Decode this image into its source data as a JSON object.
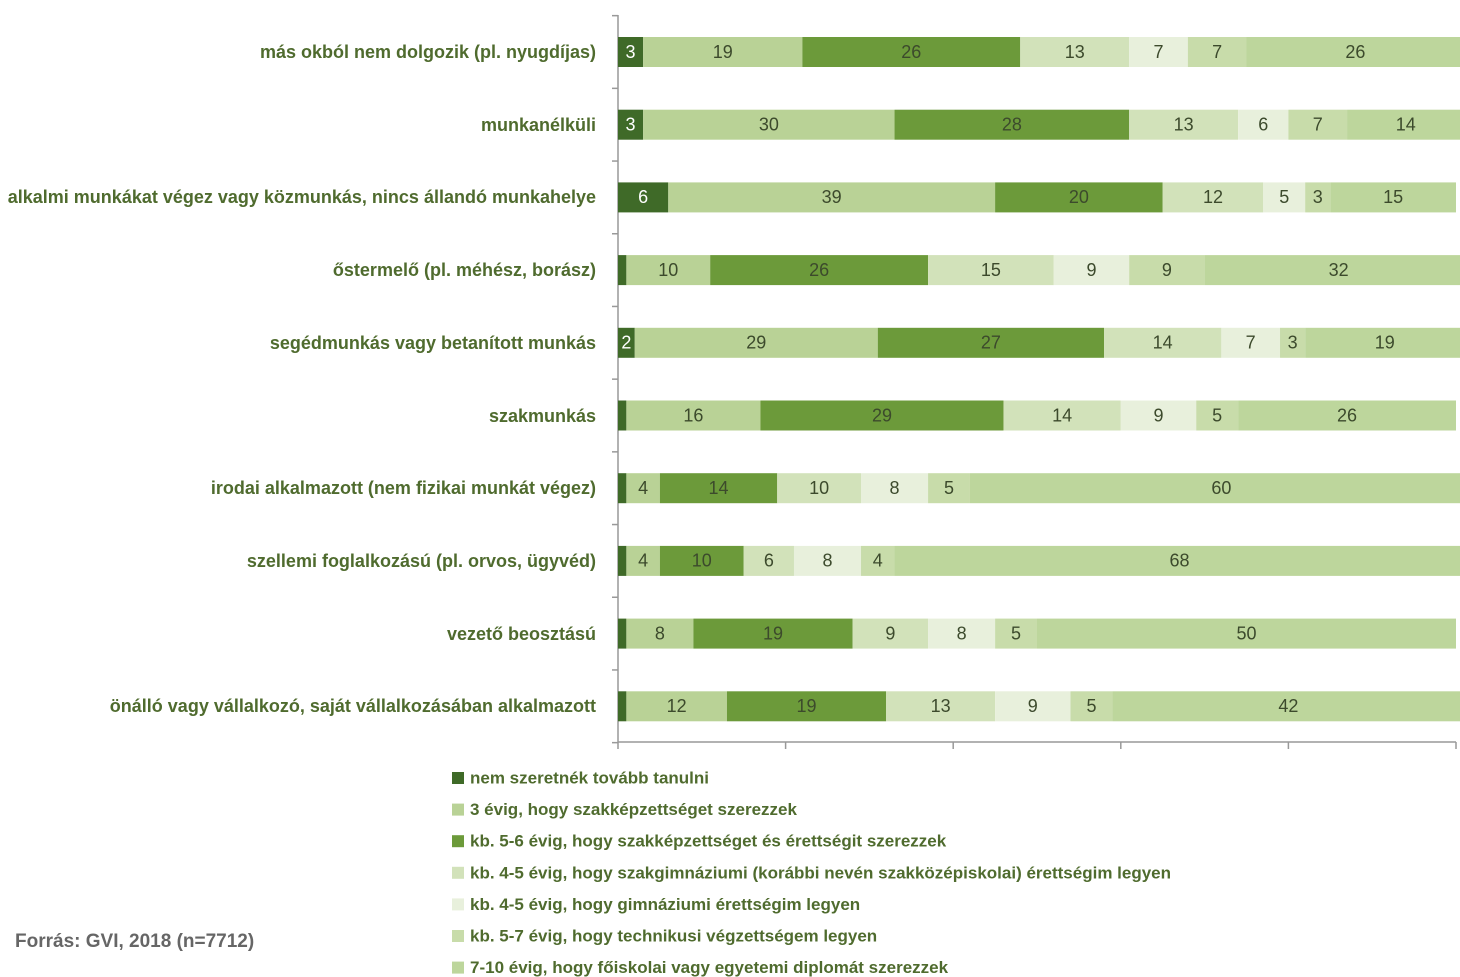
{
  "chart_data": {
    "type": "stacked_bar_horizontal",
    "categories": [
      "más okból nem dolgozik (pl. nyugdíjas)",
      "munkanélküli",
      "alkalmi munkákat végez vagy  közmunkás, nincs állandó munkahelye",
      "őstermelő (pl. méhész, borász)",
      "segédmunkás vagy betanított munkás",
      "szakmunkás",
      "irodai alkalmazott (nem fizikai munkát végez)",
      "szellemi foglalkozású (pl. orvos, ügyvéd)",
      "vezető beosztású",
      "önálló vagy vállalkozó, saját vállalkozásában alkalmazott"
    ],
    "series": [
      {
        "name": "nem szeretnék tovább tanulni",
        "color": "#3f6a28",
        "values": [
          3,
          3,
          6,
          1,
          2,
          1,
          1,
          1,
          1,
          1
        ]
      },
      {
        "name": "3 évig, hogy szakképzettséget szerezzek",
        "color": "#b9d296",
        "values": [
          19,
          30,
          39,
          10,
          29,
          16,
          4,
          4,
          8,
          12
        ]
      },
      {
        "name": "kb. 5-6 évig, hogy szakképzettséget és érettségit szerezzek",
        "color": "#6c9a3a",
        "values": [
          26,
          28,
          20,
          26,
          27,
          29,
          14,
          10,
          19,
          19
        ]
      },
      {
        "name": "kb. 4-5 évig, hogy szakgimnáziumi (korábbi nevén szakközépiskolai) érettségim legyen",
        "color": "#d2e2ba",
        "values": [
          13,
          13,
          12,
          15,
          14,
          14,
          10,
          6,
          9,
          13
        ]
      },
      {
        "name": "kb. 4-5 évig, hogy gimnáziumi érettségim legyen",
        "color": "#e8f0dc",
        "values": [
          7,
          6,
          5,
          9,
          7,
          9,
          8,
          8,
          8,
          9
        ]
      },
      {
        "name": "kb. 5-7 évig, hogy technikusi végzettségem legyen",
        "color": "#c8dcaa",
        "values": [
          7,
          7,
          3,
          9,
          3,
          5,
          5,
          4,
          5,
          5
        ]
      },
      {
        "name": "7-10 évig, hogy főiskolai vagy egyetemi diplomát szerezzek",
        "color": "#bdd69c",
        "values": [
          26,
          14,
          15,
          32,
          19,
          26,
          60,
          68,
          50,
          42
        ]
      }
    ],
    "xlim": [
      0,
      100
    ],
    "xticks": [
      0,
      20,
      40,
      60,
      80,
      100
    ],
    "source": "Forrás: GVI, 2018 (n=7712)"
  }
}
